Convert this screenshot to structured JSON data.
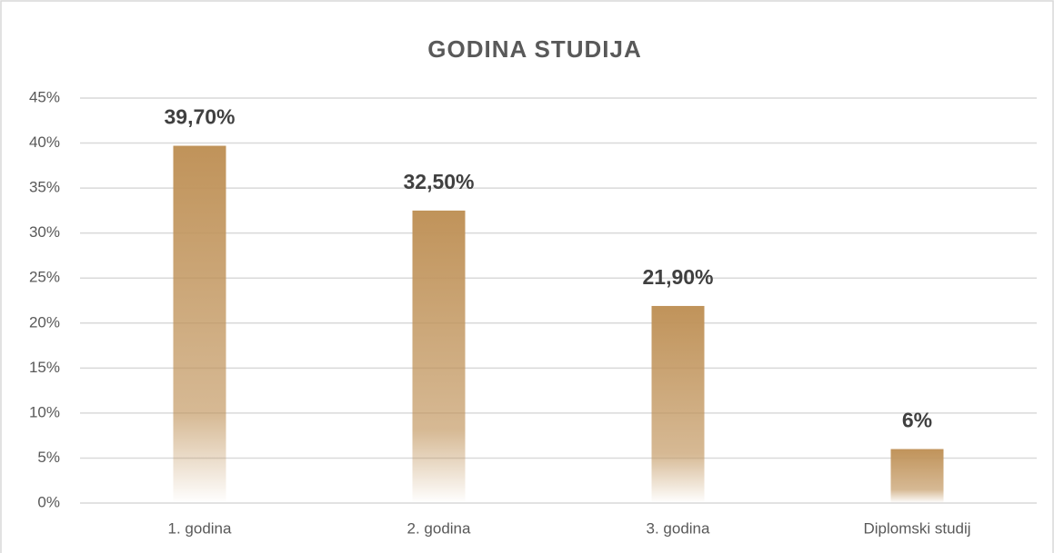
{
  "chart_data": {
    "type": "bar",
    "title": "GODINA STUDIJA",
    "categories": [
      "1. godina",
      "2. godina",
      "3. godina",
      "Diplomski studij"
    ],
    "values": [
      39.7,
      32.5,
      21.9,
      6
    ],
    "value_labels": [
      "39,70%",
      "32,50%",
      "21,90%",
      "6%"
    ],
    "color": "#c0935a",
    "ylim": [
      0,
      45
    ],
    "yticks": [
      {
        "value": 0,
        "label": "0%"
      },
      {
        "value": 5,
        "label": "5%"
      },
      {
        "value": 10,
        "label": "10%"
      },
      {
        "value": 15,
        "label": "15%"
      },
      {
        "value": 20,
        "label": "20%"
      },
      {
        "value": 25,
        "label": "25%"
      },
      {
        "value": 30,
        "label": "30%"
      },
      {
        "value": 35,
        "label": "35%"
      },
      {
        "value": 40,
        "label": "40%"
      },
      {
        "value": 45,
        "label": "45%"
      }
    ],
    "grid": true
  }
}
